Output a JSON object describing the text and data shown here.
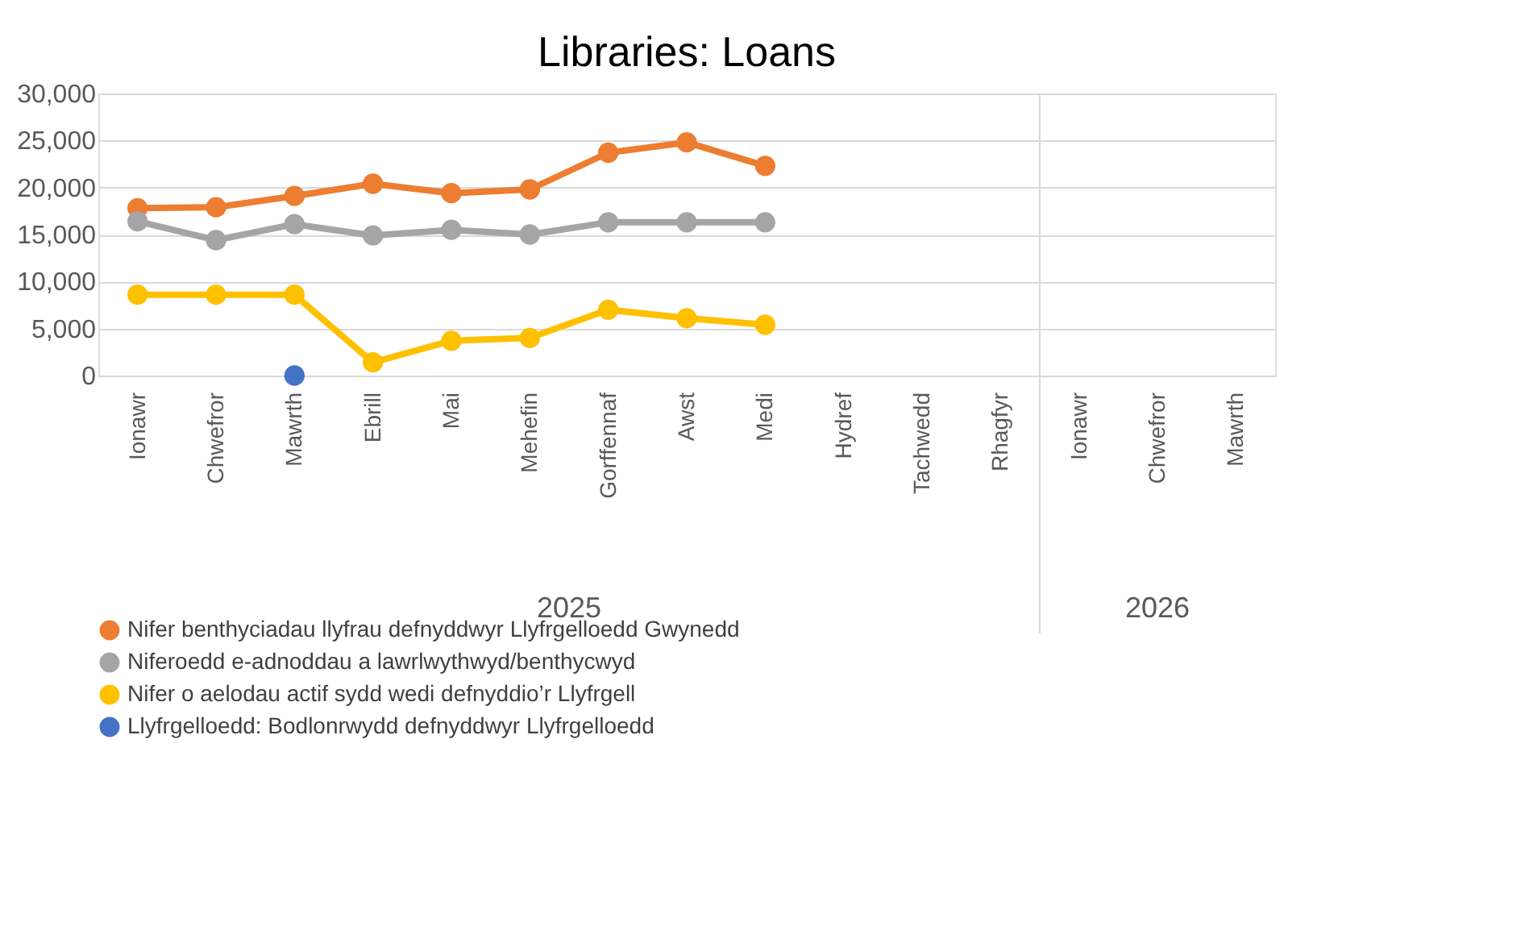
{
  "chart_data": {
    "type": "line",
    "title": "Libraries: Loans",
    "categories": [
      "Ionawr",
      "Chwefror",
      "Mawrth",
      "Ebrill",
      "Mai",
      "Mehefin",
      "Gorffennaf",
      "Awst",
      "Medi",
      "Hydref",
      "Tachwedd",
      "Rhagfyr",
      "Ionawr",
      "Chwefror",
      "Mawrth"
    ],
    "series": [
      {
        "name": "Nifer benthyciadau llyfrau defnyddwyr Llyfrgelloedd Gwynedd",
        "color": "#ed7d31",
        "values": [
          17800,
          17900,
          19100,
          20400,
          19400,
          19800,
          23700,
          24800,
          22300,
          null,
          null,
          null,
          null,
          null,
          null
        ]
      },
      {
        "name": "Niferoedd e-adnoddau a lawrlwythwyd/benthycwyd",
        "color": "#a5a5a5",
        "values": [
          16400,
          14400,
          16100,
          14900,
          15500,
          15000,
          16300,
          16300,
          16300,
          null,
          null,
          null,
          null,
          null,
          null
        ]
      },
      {
        "name": "Nifer o aelodau actif sydd wedi defnyddio’r Llyfrgell",
        "color": "#ffc000",
        "values": [
          8600,
          8600,
          8600,
          1400,
          3700,
          4000,
          7000,
          6100,
          5400,
          null,
          null,
          null,
          null,
          null,
          null
        ]
      },
      {
        "name": "Llyfrgelloedd:  Bodlonrwydd defnyddwyr Llyfrgelloedd",
        "color": "#4472c4",
        "values": [
          null,
          null,
          0,
          null,
          null,
          null,
          null,
          null,
          null,
          null,
          null,
          null,
          null,
          null,
          null
        ]
      }
    ],
    "annotations": [
      "2025",
      "2026"
    ],
    "ylim": [
      0,
      30000
    ],
    "yticks": [
      0,
      {
        "value": 5000,
        "label": "5,000"
      },
      {
        "value": 10000,
        "label": "10,000"
      },
      {
        "value": 15000,
        "label": "15,000"
      },
      {
        "value": 20000,
        "label": "20,000"
      },
      {
        "value": 25000,
        "label": "25,000"
      },
      {
        "value": 30000,
        "label": "30,000"
      }
    ],
    "grid": "y",
    "legend": "bottom",
    "marker": "circle",
    "line_style": "solid"
  }
}
